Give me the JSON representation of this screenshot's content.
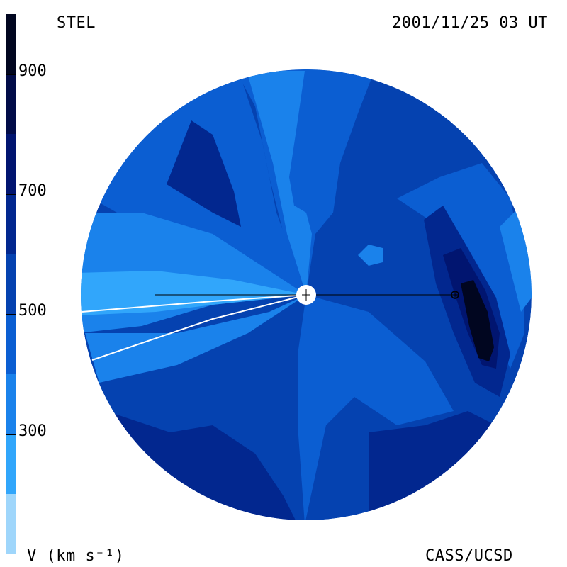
{
  "header": {
    "instrument": "STEL",
    "timestamp": "2001/11/25 03 UT"
  },
  "footer": {
    "unit_label": "V (km s⁻¹)",
    "credit": "CASS/UCSD"
  },
  "colorbar": {
    "levels": [
      {
        "min": 100,
        "max": 200,
        "color": "#9fd6fb"
      },
      {
        "min": 200,
        "max": 300,
        "color": "#31a6fb"
      },
      {
        "min": 300,
        "max": 400,
        "color": "#1a82eb"
      },
      {
        "min": 400,
        "max": 500,
        "color": "#0b5ed2"
      },
      {
        "min": 500,
        "max": 600,
        "color": "#0542b0"
      },
      {
        "min": 600,
        "max": 700,
        "color": "#02278f"
      },
      {
        "min": 700,
        "max": 800,
        "color": "#011570"
      },
      {
        "min": 800,
        "max": 900,
        "color": "#020c48"
      },
      {
        "min": 900,
        "max": 1000,
        "color": "#010620"
      }
    ],
    "ticks": [
      "300",
      "500",
      "700",
      "900"
    ],
    "tick_values": [
      300,
      500,
      700,
      900
    ],
    "range": [
      100,
      1000
    ]
  },
  "colors": {
    "base": "#0542b0",
    "sun": "#ffffff",
    "earth_line": "#000000"
  }
}
